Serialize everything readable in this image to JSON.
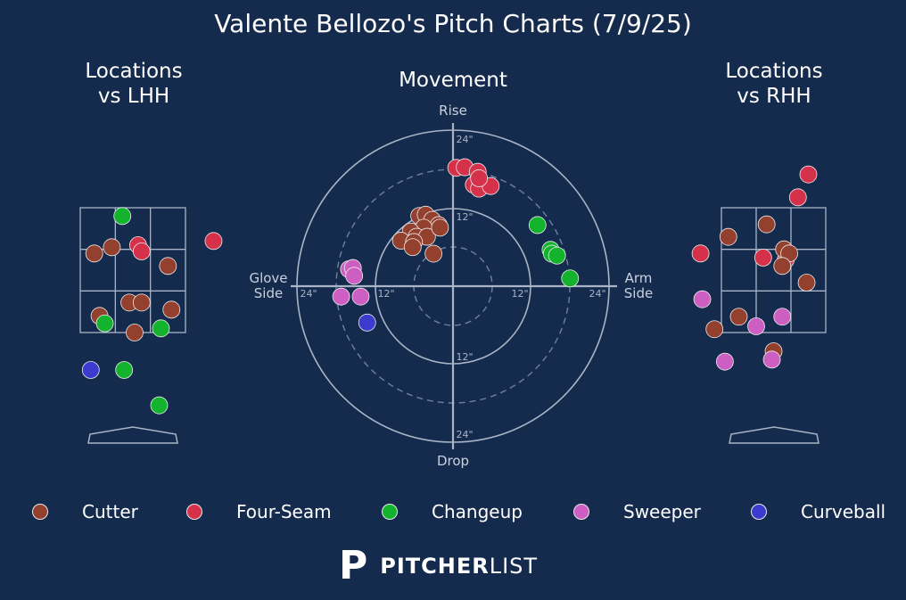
{
  "title": "Valente Bellozo's Pitch Charts (7/9/25)",
  "panels": {
    "lhh_title_1": "Locations",
    "lhh_title_2": "vs LHH",
    "movement_title": "Movement",
    "rhh_title_1": "Locations",
    "rhh_title_2": "vs RHH"
  },
  "movement_labels": {
    "top": "Rise",
    "bottom": "Drop",
    "left_1": "Glove",
    "left_2": "Side",
    "right_1": "Arm",
    "right_2": "Side",
    "ring_12": "12\"",
    "ring_24": "24\""
  },
  "colors": {
    "background": "#152b4d",
    "Cutter": "#94402f",
    "Four-Seam": "#d6314a",
    "Changeup": "#13b32d",
    "Sweeper": "#cc5fc1",
    "Curveball": "#3c3bd0",
    "grid": "#a9b4c6"
  },
  "legend": [
    {
      "name": "Cutter",
      "color": "#94402f"
    },
    {
      "name": "Four-Seam",
      "color": "#d6314a"
    },
    {
      "name": "Changeup",
      "color": "#13b32d"
    },
    {
      "name": "Sweeper",
      "color": "#cc5fc1"
    },
    {
      "name": "Curveball",
      "color": "#3c3bd0"
    }
  ],
  "logo": {
    "bold": "PITCHER",
    "thin": "LIST",
    "mark": "P"
  },
  "chart_data": [
    {
      "type": "scatter",
      "title": "Locations vs LHH",
      "units": "strike zone thirds (x: -1.5..1.5 across plate, y: 0 bottom..3 top of zone)",
      "points": [
        {
          "pitch": "Changeup",
          "x": -0.3,
          "y": 2.8
        },
        {
          "pitch": "Cutter",
          "x": -1.1,
          "y": 1.9
        },
        {
          "pitch": "Cutter",
          "x": -0.6,
          "y": 2.05
        },
        {
          "pitch": "Four-Seam",
          "x": 0.15,
          "y": 2.1
        },
        {
          "pitch": "Four-Seam",
          "x": 0.25,
          "y": 1.95
        },
        {
          "pitch": "Four-Seam",
          "x": 2.3,
          "y": 2.2
        },
        {
          "pitch": "Cutter",
          "x": 1.0,
          "y": 1.6
        },
        {
          "pitch": "Cutter",
          "x": -0.1,
          "y": 0.72
        },
        {
          "pitch": "Cutter",
          "x": 0.25,
          "y": 0.72
        },
        {
          "pitch": "Cutter",
          "x": 1.1,
          "y": 0.55
        },
        {
          "pitch": "Cutter",
          "x": -0.95,
          "y": 0.4
        },
        {
          "pitch": "Changeup",
          "x": -0.8,
          "y": 0.22
        },
        {
          "pitch": "Cutter",
          "x": 0.05,
          "y": 0.0
        },
        {
          "pitch": "Changeup",
          "x": 0.8,
          "y": 0.1
        },
        {
          "pitch": "Curveball",
          "x": -1.2,
          "y": -0.9
        },
        {
          "pitch": "Changeup",
          "x": -0.25,
          "y": -0.9
        },
        {
          "pitch": "Changeup",
          "x": 0.75,
          "y": -1.75
        }
      ]
    },
    {
      "type": "scatter",
      "title": "Movement",
      "units": "inches (x: horizontal break, arm side positive; y: induced vertical break)",
      "xlim": [
        -24,
        24
      ],
      "ylim": [
        -24,
        24
      ],
      "points": [
        {
          "pitch": "Four-Seam",
          "x": 0.5,
          "y": 18.2
        },
        {
          "pitch": "Four-Seam",
          "x": 1.8,
          "y": 18.3
        },
        {
          "pitch": "Four-Seam",
          "x": 3.8,
          "y": 17.6
        },
        {
          "pitch": "Four-Seam",
          "x": 3.2,
          "y": 15.6
        },
        {
          "pitch": "Four-Seam",
          "x": 4.0,
          "y": 15.0
        },
        {
          "pitch": "Four-Seam",
          "x": 5.8,
          "y": 15.4
        },
        {
          "pitch": "Four-Seam",
          "x": 4.0,
          "y": 16.6
        },
        {
          "pitch": "Changeup",
          "x": 13.0,
          "y": 9.4
        },
        {
          "pitch": "Changeup",
          "x": 15.0,
          "y": 5.6
        },
        {
          "pitch": "Changeup",
          "x": 15.2,
          "y": 5.0
        },
        {
          "pitch": "Changeup",
          "x": 16.0,
          "y": 4.7
        },
        {
          "pitch": "Changeup",
          "x": 18.0,
          "y": 1.2
        },
        {
          "pitch": "Cutter",
          "x": -5.2,
          "y": 10.8
        },
        {
          "pitch": "Cutter",
          "x": -4.2,
          "y": 11.0
        },
        {
          "pitch": "Cutter",
          "x": -3.2,
          "y": 10.2
        },
        {
          "pitch": "Cutter",
          "x": -2.2,
          "y": 9.4
        },
        {
          "pitch": "Cutter",
          "x": -4.5,
          "y": 9.0
        },
        {
          "pitch": "Cutter",
          "x": -6.5,
          "y": 8.4
        },
        {
          "pitch": "Cutter",
          "x": -5.6,
          "y": 7.6
        },
        {
          "pitch": "Cutter",
          "x": -8.0,
          "y": 7.0
        },
        {
          "pitch": "Cutter",
          "x": -4.0,
          "y": 7.6
        },
        {
          "pitch": "Cutter",
          "x": -6.0,
          "y": 6.8
        },
        {
          "pitch": "Cutter",
          "x": -6.2,
          "y": 6.0
        },
        {
          "pitch": "Cutter",
          "x": -3.0,
          "y": 5.0
        },
        {
          "pitch": "Cutter",
          "x": -2.0,
          "y": 9.0
        },
        {
          "pitch": "Sweeper",
          "x": -16.0,
          "y": 2.6
        },
        {
          "pitch": "Sweeper",
          "x": -15.4,
          "y": 2.8
        },
        {
          "pitch": "Sweeper",
          "x": -15.2,
          "y": 1.6
        },
        {
          "pitch": "Sweeper",
          "x": -17.2,
          "y": -1.6
        },
        {
          "pitch": "Sweeper",
          "x": -14.2,
          "y": -1.6
        },
        {
          "pitch": "Curveball",
          "x": -13.2,
          "y": -5.6
        }
      ]
    },
    {
      "type": "scatter",
      "title": "Locations vs RHH",
      "units": "strike zone thirds (x: -1.5..1.5 across plate, y: 0 bottom..3 top of zone)",
      "points": [
        {
          "pitch": "Four-Seam",
          "x": 1.0,
          "y": 3.8
        },
        {
          "pitch": "Four-Seam",
          "x": 0.7,
          "y": 3.25
        },
        {
          "pitch": "Cutter",
          "x": -0.2,
          "y": 2.6
        },
        {
          "pitch": "Cutter",
          "x": -1.3,
          "y": 2.3
        },
        {
          "pitch": "Four-Seam",
          "x": -2.1,
          "y": 1.9
        },
        {
          "pitch": "Four-Seam",
          "x": -0.3,
          "y": 1.8
        },
        {
          "pitch": "Four-Seam",
          "x": 0.35,
          "y": 1.75
        },
        {
          "pitch": "Cutter",
          "x": 0.3,
          "y": 2.0
        },
        {
          "pitch": "Cutter",
          "x": 0.45,
          "y": 1.9
        },
        {
          "pitch": "Cutter",
          "x": 0.25,
          "y": 1.6
        },
        {
          "pitch": "Cutter",
          "x": 0.95,
          "y": 1.2
        },
        {
          "pitch": "Sweeper",
          "x": -2.05,
          "y": 0.8
        },
        {
          "pitch": "Cutter",
          "x": -1.0,
          "y": 0.38
        },
        {
          "pitch": "Sweeper",
          "x": 0.25,
          "y": 0.38
        },
        {
          "pitch": "Sweeper",
          "x": -0.5,
          "y": 0.15
        },
        {
          "pitch": "Cutter",
          "x": -1.7,
          "y": 0.08
        },
        {
          "pitch": "Cutter",
          "x": 0.0,
          "y": -0.45
        },
        {
          "pitch": "Sweeper",
          "x": -1.4,
          "y": -0.7
        },
        {
          "pitch": "Sweeper",
          "x": -0.05,
          "y": -0.65
        }
      ]
    }
  ]
}
